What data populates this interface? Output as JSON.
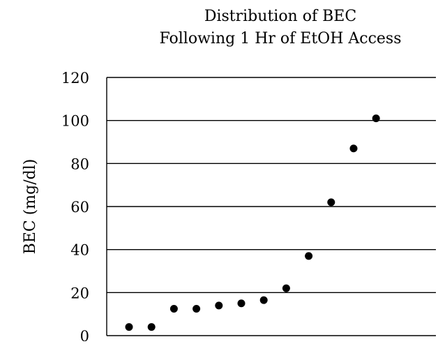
{
  "chart_data": {
    "type": "scatter",
    "title": [
      "Distribution of BEC",
      "Following 1 Hr of EtOH Access"
    ],
    "xlabel": "",
    "ylabel": "BEC (mg/dl)",
    "ylim": [
      0,
      120
    ],
    "yticks": [
      0,
      20,
      40,
      60,
      80,
      100,
      120
    ],
    "grid": "none",
    "legend": "none",
    "x": [
      1,
      2,
      3,
      4,
      5,
      6,
      7,
      8,
      9,
      10,
      11,
      12
    ],
    "y": [
      4,
      4,
      12.5,
      12.5,
      14,
      15,
      16.5,
      22,
      37,
      62,
      87,
      101
    ],
    "marker_color": "#000000"
  }
}
